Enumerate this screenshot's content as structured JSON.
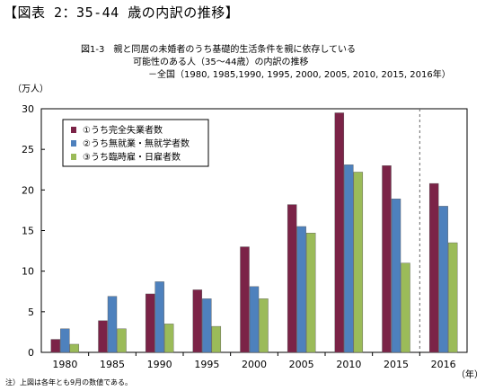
{
  "header": "【図表 2：35-44 歳の内訳の推移】",
  "title_lines": [
    "図1-3　親と同居の未婚者のうち基礎的生活条件を親に依存している",
    "可能性のある人（35～44歳）の内訳の推移",
    "－全国（1980, 1985,1990, 1995, 2000, 2005, 2010, 2015, 2016年）"
  ],
  "note": "注）上図は各年とも9月の数値である。",
  "chart_data": {
    "type": "bar",
    "categories": [
      "1980",
      "1985",
      "1990",
      "1995",
      "2000",
      "2005",
      "2010",
      "2015",
      "2016"
    ],
    "series": [
      {
        "name": "①うち完全失業者数",
        "color": "#7B2347",
        "values": [
          1.6,
          3.9,
          7.2,
          7.7,
          13.0,
          18.2,
          29.5,
          23.0,
          20.8
        ]
      },
      {
        "name": "②うち無就業・無就学者数",
        "color": "#4E81BD",
        "values": [
          2.9,
          6.9,
          8.7,
          6.6,
          8.1,
          15.5,
          23.1,
          18.9,
          18.0
        ]
      },
      {
        "name": "③うち臨時雇・日雇者数",
        "color": "#9BBB59",
        "values": [
          1.0,
          2.9,
          3.5,
          3.2,
          6.6,
          14.7,
          22.2,
          11.0,
          13.5
        ]
      }
    ],
    "ylabel": "（万人）",
    "xlabel": "（年）",
    "ylim": [
      0,
      30
    ],
    "yticks": [
      0,
      5,
      10,
      15,
      20,
      25,
      30
    ],
    "legend_position": "top-left",
    "grid": false,
    "divider_before_last": true
  }
}
